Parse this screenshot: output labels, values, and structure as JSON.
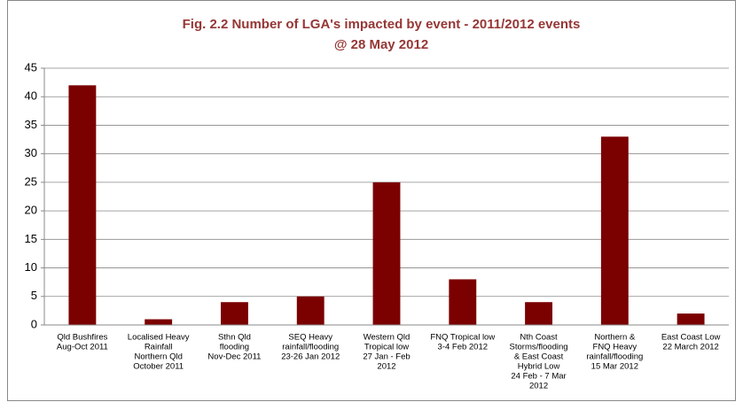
{
  "chart_data": {
    "type": "bar",
    "title": [
      "Fig. 2.2 Number of LGA's impacted by event - 2011/2012 events",
      "@ 28 May 2012"
    ],
    "categories": [
      [
        "Qld Bushfires",
        "Aug-Oct 2011"
      ],
      [
        "Localised Heavy",
        "Rainfall",
        "Northern Qld",
        "October 2011"
      ],
      [
        "Sthn Qld",
        "flooding",
        "Nov-Dec 2011"
      ],
      [
        "SEQ Heavy",
        "rainfall/flooding",
        "23-26 Jan 2012"
      ],
      [
        "Western Qld",
        "Tropical low",
        "27 Jan - Feb",
        "2012"
      ],
      [
        "FNQ Tropical low",
        "3-4 Feb 2012"
      ],
      [
        "Nth Coast",
        "Storms/flooding",
        "& East Coast",
        "Hybrid Low",
        "24 Feb - 7 Mar",
        "2012"
      ],
      [
        "Northern &",
        "FNQ Heavy",
        "rainfall/flooding",
        "15 Mar 2012"
      ],
      [
        "East Coast Low",
        "22 March 2012"
      ]
    ],
    "values": [
      42,
      1,
      4,
      5,
      25,
      8,
      4,
      33,
      2
    ],
    "color": "#7b0000",
    "ylim": [
      0,
      45
    ],
    "yticks": [
      0,
      5,
      10,
      15,
      20,
      25,
      30,
      35,
      40,
      45
    ],
    "grid": true
  }
}
